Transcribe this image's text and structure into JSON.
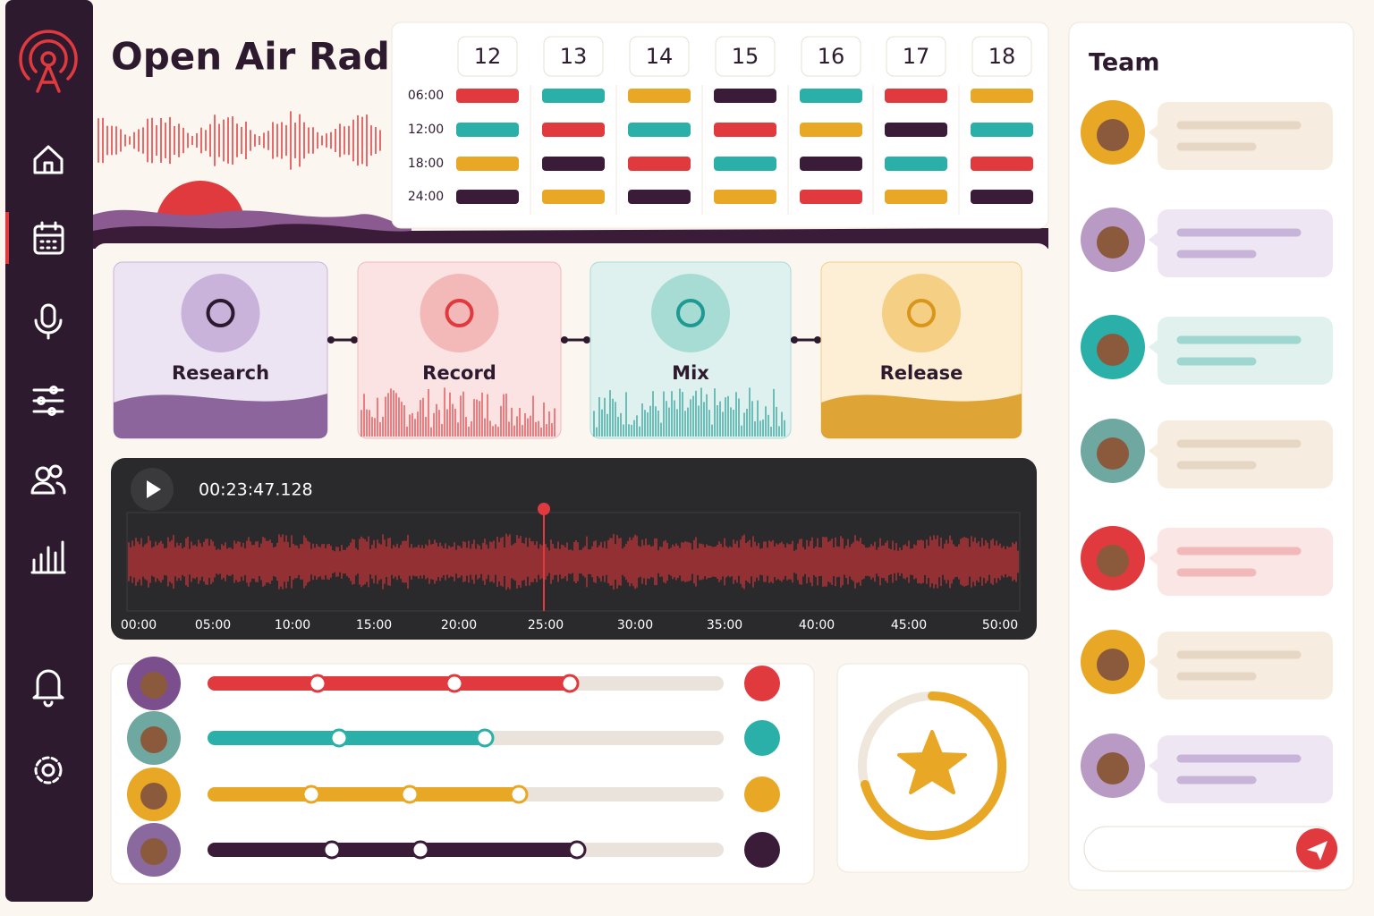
{
  "header": {
    "title": "Open Air Radio"
  },
  "schedule": {
    "days": [
      "12",
      "13",
      "14",
      "15",
      "16",
      "17",
      "18"
    ],
    "times": [
      "06:00",
      "12:00",
      "18:00",
      "24:00"
    ],
    "slots": [
      [
        "#e03a3e",
        "#2ab0a8",
        "#e8a826",
        "#3a1b38",
        "#2ab0a8",
        "#e03a3e",
        "#e8a826"
      ],
      [
        "#2ab0a8",
        "#e03a3e",
        "#2ab0a8",
        "#e03a3e",
        "#e8a826",
        "#3a1b38",
        "#2ab0a8"
      ],
      [
        "#e8a826",
        "#3a1b38",
        "#e03a3e",
        "#2ab0a8",
        "#3a1b38",
        "#2ab0a8",
        "#e03a3e"
      ],
      [
        "#3a1b38",
        "#e8a826",
        "#3a1b38",
        "#e8a826",
        "#e03a3e",
        "#e8a826",
        "#3a1b38"
      ]
    ]
  },
  "workflow": {
    "steps": [
      "Research",
      "Record",
      "Mix",
      "Release"
    ]
  },
  "player": {
    "time": "00:23:47.128",
    "timeline": [
      "00:00",
      "05:00",
      "10:00",
      "15:00",
      "20:00",
      "25:00",
      "30:00",
      "35:00",
      "40:00",
      "45:00",
      "50:00"
    ]
  },
  "team": {
    "title": "Team"
  }
}
